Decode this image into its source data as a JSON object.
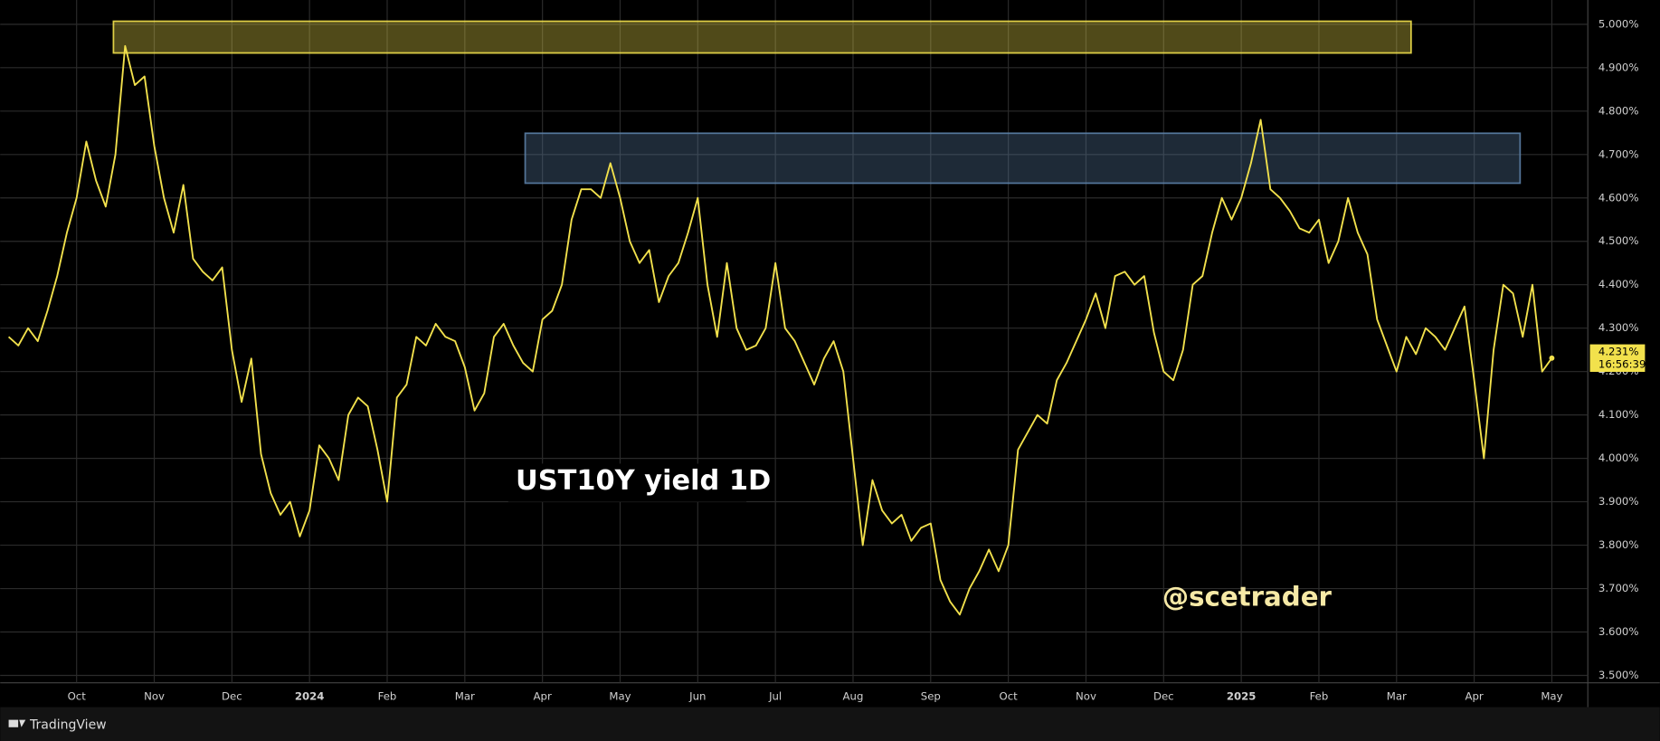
{
  "chart_data": {
    "type": "line",
    "annotations": [
      "UST10Y yield 1D",
      "@scetrader"
    ],
    "brand": "TradingView",
    "countdown": "16:56:39",
    "color": "#f2e14c",
    "zones": [
      {
        "ylim": [
          4.934,
          5.007
        ],
        "color": "#f2e14c"
      },
      {
        "ylim": [
          4.634,
          4.749
        ],
        "color": "#5b7fa6"
      }
    ],
    "categories": [
      null,
      null,
      null,
      null,
      null,
      null,
      null,
      "Oct",
      null,
      null,
      null,
      null,
      null,
      null,
      null,
      "Nov",
      null,
      null,
      null,
      null,
      null,
      null,
      null,
      "Dec",
      null,
      null,
      null,
      null,
      null,
      null,
      null,
      "2024",
      null,
      null,
      null,
      null,
      null,
      null,
      null,
      "Feb",
      null,
      null,
      null,
      null,
      null,
      null,
      null,
      "Mar",
      null,
      null,
      null,
      null,
      null,
      null,
      null,
      "Apr",
      null,
      null,
      null,
      null,
      null,
      null,
      null,
      "May",
      null,
      null,
      null,
      null,
      null,
      null,
      null,
      "Jun",
      null,
      null,
      null,
      null,
      null,
      null,
      null,
      "Jul",
      null,
      null,
      null,
      null,
      null,
      null,
      null,
      "Aug",
      null,
      null,
      null,
      null,
      null,
      null,
      null,
      "Sep",
      null,
      null,
      null,
      null,
      null,
      null,
      null,
      "Oct",
      null,
      null,
      null,
      null,
      null,
      null,
      null,
      "Nov",
      null,
      null,
      null,
      null,
      null,
      null,
      null,
      "Dec",
      null,
      null,
      null,
      null,
      null,
      null,
      null,
      "2025",
      null,
      null,
      null,
      null,
      null,
      null,
      null,
      "Feb",
      null,
      null,
      null,
      null,
      null,
      null,
      null,
      "Mar",
      null,
      null,
      null,
      null,
      null,
      null,
      null,
      "Apr",
      null,
      null,
      null,
      null,
      null,
      null,
      null,
      "May"
    ],
    "values": [
      4.28,
      4.26,
      4.3,
      4.27,
      4.34,
      4.42,
      4.52,
      4.6,
      4.73,
      4.64,
      4.58,
      4.7,
      4.95,
      4.86,
      4.88,
      4.72,
      4.6,
      4.52,
      4.63,
      4.46,
      4.43,
      4.41,
      4.44,
      4.25,
      4.13,
      4.23,
      4.01,
      3.92,
      3.87,
      3.9,
      3.82,
      3.88,
      4.03,
      4.0,
      3.95,
      4.1,
      4.14,
      4.12,
      4.02,
      3.9,
      4.14,
      4.17,
      4.28,
      4.26,
      4.31,
      4.28,
      4.27,
      4.21,
      4.11,
      4.15,
      4.28,
      4.31,
      4.26,
      4.22,
      4.2,
      4.32,
      4.34,
      4.4,
      4.55,
      4.62,
      4.62,
      4.6,
      4.68,
      4.6,
      4.5,
      4.45,
      4.48,
      4.36,
      4.42,
      4.45,
      4.52,
      4.6,
      4.4,
      4.28,
      4.45,
      4.3,
      4.25,
      4.26,
      4.3,
      4.45,
      4.3,
      4.27,
      4.22,
      4.17,
      4.23,
      4.27,
      4.2,
      4.0,
      3.8,
      3.95,
      3.88,
      3.85,
      3.87,
      3.81,
      3.84,
      3.85,
      3.72,
      3.67,
      3.64,
      3.7,
      3.74,
      3.79,
      3.74,
      3.8,
      4.02,
      4.06,
      4.1,
      4.08,
      4.18,
      4.22,
      4.27,
      4.32,
      4.38,
      4.3,
      4.42,
      4.43,
      4.4,
      4.42,
      4.29,
      4.2,
      4.18,
      4.25,
      4.4,
      4.42,
      4.52,
      4.6,
      4.55,
      4.6,
      4.68,
      4.78,
      4.62,
      4.6,
      4.57,
      4.53,
      4.52,
      4.55,
      4.45,
      4.5,
      4.6,
      4.52,
      4.47,
      4.32,
      4.26,
      4.2,
      4.28,
      4.24,
      4.3,
      4.28,
      4.25,
      4.3,
      4.35,
      4.18,
      4.0,
      4.25,
      4.4,
      4.38,
      4.28,
      4.4,
      4.2,
      4.231
    ],
    "value_labels": [
      null,
      null,
      null,
      null,
      null,
      null,
      null,
      null,
      null,
      null,
      null,
      null,
      null,
      null,
      null,
      null,
      null,
      null,
      null,
      null,
      null,
      null,
      null,
      null,
      null,
      null,
      null,
      null,
      null,
      null,
      null,
      null,
      null,
      null,
      null,
      null,
      null,
      null,
      null,
      null,
      null,
      null,
      null,
      null,
      null,
      null,
      null,
      null,
      null,
      null,
      null,
      null,
      null,
      null,
      null,
      null,
      null,
      null,
      null,
      null,
      null,
      null,
      null,
      null,
      null,
      null,
      null,
      null,
      null,
      null,
      null,
      null,
      null,
      null,
      null,
      null,
      null,
      null,
      null,
      null,
      null,
      null,
      null,
      null,
      null,
      null,
      null,
      null,
      null,
      null,
      null,
      null,
      null,
      null,
      null,
      null,
      null,
      null,
      null,
      null,
      null,
      null,
      null,
      null,
      null,
      null,
      null,
      null,
      null,
      null,
      null,
      null,
      null,
      null,
      null,
      null,
      null,
      null,
      null,
      null,
      null,
      null,
      null,
      null,
      null,
      null,
      null,
      null,
      null,
      null,
      null,
      null,
      null,
      null,
      null,
      null,
      null,
      null,
      null,
      null,
      null,
      null,
      null,
      null,
      null,
      null,
      null,
      null,
      null,
      null,
      null,
      null,
      null,
      null,
      null,
      null,
      null,
      null,
      null,
      "4.231%"
    ],
    "ylim": [
      3.483,
      5.056
    ],
    "yticks": [
      {
        "value": 3.5,
        "label": "3.500%"
      },
      {
        "value": 3.6,
        "label": "3.600%"
      },
      {
        "value": 3.7,
        "label": "3.700%"
      },
      {
        "value": 3.8,
        "label": "3.800%"
      },
      {
        "value": 3.9,
        "label": "3.900%"
      },
      {
        "value": 4.0,
        "label": "4.000%"
      },
      {
        "value": 4.1,
        "label": "4.100%"
      },
      {
        "value": 4.2,
        "label": "4.200%"
      },
      {
        "value": 4.3,
        "label": "4.300%"
      },
      {
        "value": 4.4,
        "label": "4.400%"
      },
      {
        "value": 4.5,
        "label": "4.500%"
      },
      {
        "value": 4.6,
        "label": "4.600%"
      },
      {
        "value": 4.7,
        "label": "4.700%"
      },
      {
        "value": 4.8,
        "label": "4.800%"
      },
      {
        "value": 4.9,
        "label": "4.900%"
      },
      {
        "value": 5.0,
        "label": "5.000%"
      }
    ],
    "grid": true
  }
}
